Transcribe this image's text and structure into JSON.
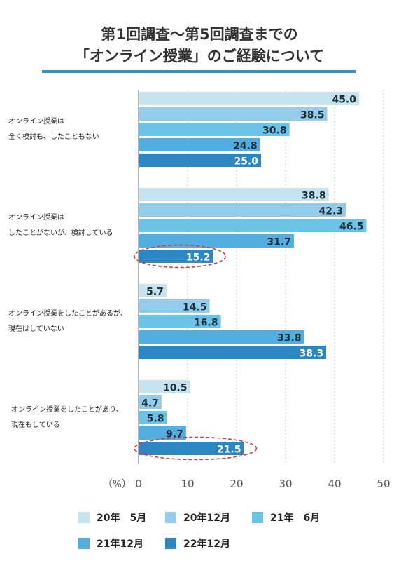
{
  "header": {
    "title_line1": "第1回調査～第5回調査までの",
    "title_line2": "「オンライン授業」のご経験について"
  },
  "chart_data": {
    "type": "bar",
    "orientation": "horizontal",
    "categories": [
      [
        "オンライン授業は",
        "全く検討も、したこともない"
      ],
      [
        "オンライン授業は",
        "したことがないが、検討している"
      ],
      [
        "オンライン授業をしたことがあるが、",
        "現在はしていない"
      ],
      [
        "オンライン授業をしたことがあり、",
        "現在もしている"
      ]
    ],
    "series": [
      {
        "name": "20年　5月",
        "color": "#c4e3ee",
        "values": [
          45.0,
          38.8,
          5.7,
          10.5
        ]
      },
      {
        "name": "20年12月",
        "color": "#94cdeb",
        "values": [
          38.5,
          42.3,
          14.5,
          4.7
        ]
      },
      {
        "name": "21年　6月",
        "color": "#6cc3e8",
        "values": [
          30.8,
          46.5,
          16.8,
          5.8
        ]
      },
      {
        "name": "21年12月",
        "color": "#52ade0",
        "values": [
          24.8,
          31.7,
          33.8,
          9.7
        ]
      },
      {
        "name": "22年12月",
        "color": "#2b86c2",
        "values": [
          25.0,
          15.2,
          38.3,
          21.5
        ]
      }
    ],
    "value_labels": [
      [
        "45.0",
        "38.8",
        "5.7",
        "10.5"
      ],
      [
        "38.5",
        "42.3",
        "14.5",
        "4.7"
      ],
      [
        "30.8",
        "46.5",
        "16.8",
        "5.8"
      ],
      [
        "24.8",
        "31.7",
        "33.8",
        "9.7"
      ],
      [
        "25.0",
        "15.2",
        "38.3",
        "21.5"
      ]
    ],
    "x_unit_label": "（%）",
    "x_ticks": [
      "0",
      "10",
      "20",
      "30",
      "40",
      "50"
    ],
    "xlim": [
      0,
      50
    ],
    "grid": "dotted-vertical",
    "highlighted": [
      [
        1,
        4
      ],
      [
        3,
        4
      ]
    ],
    "highlight_color": "#d23b3b",
    "legend_position": "bottom"
  }
}
